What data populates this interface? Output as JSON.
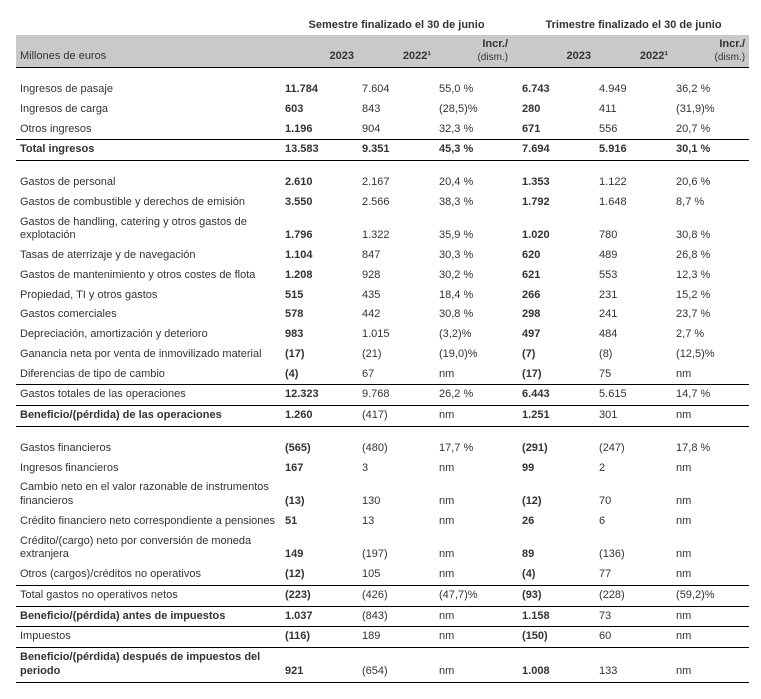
{
  "headers": {
    "group_sem": "Semestre finalizado el 30 de junio",
    "group_tri": "Trimestre finalizado el 30 de junio",
    "unit": "Millones de euros",
    "y2023": "2023",
    "y2022": "2022¹",
    "incr_top": "Incr./",
    "incr_bot": "(dism.)"
  },
  "rows": {
    "r0": {
      "l": "Ingresos de pasaje",
      "a": "11.784",
      "b": "7.604",
      "c": "55,0 %",
      "d": "6.743",
      "e": "4.949",
      "f": "36,2 %"
    },
    "r1": {
      "l": "Ingresos de carga",
      "a": "603",
      "b": "843",
      "c": "(28,5)%",
      "d": "280",
      "e": "411",
      "f": "(31,9)%"
    },
    "r2": {
      "l": "Otros ingresos",
      "a": "1.196",
      "b": "904",
      "c": "32,3 %",
      "d": "671",
      "e": "556",
      "f": "20,7 %"
    },
    "r3": {
      "l": "Total ingresos",
      "a": "13.583",
      "b": "9.351",
      "c": "45,3 %",
      "d": "7.694",
      "e": "5.916",
      "f": "30,1 %"
    },
    "r4": {
      "l": "Gastos de personal",
      "a": "2.610",
      "b": "2.167",
      "c": "20,4 %",
      "d": "1.353",
      "e": "1.122",
      "f": "20,6 %"
    },
    "r5": {
      "l": "Gastos de combustible y derechos de emisión",
      "a": "3.550",
      "b": "2.566",
      "c": "38,3 %",
      "d": "1.792",
      "e": "1.648",
      "f": "8,7 %"
    },
    "r6": {
      "l": "Gastos de handling, catering y otros gastos de explotación",
      "a": "1.796",
      "b": "1.322",
      "c": "35,9 %",
      "d": "1.020",
      "e": "780",
      "f": "30,8 %"
    },
    "r7": {
      "l": "Tasas de aterrizaje y de navegación",
      "a": "1.104",
      "b": "847",
      "c": "30,3 %",
      "d": "620",
      "e": "489",
      "f": "26,8 %"
    },
    "r8": {
      "l": "Gastos de mantenimiento y otros costes de flota",
      "a": "1.208",
      "b": "928",
      "c": "30,2 %",
      "d": "621",
      "e": "553",
      "f": "12,3 %"
    },
    "r9": {
      "l": "Propiedad, TI y otros gastos",
      "a": "515",
      "b": "435",
      "c": "18,4 %",
      "d": "266",
      "e": "231",
      "f": "15,2 %"
    },
    "r10": {
      "l": "Gastos comerciales",
      "a": "578",
      "b": "442",
      "c": "30,8 %",
      "d": "298",
      "e": "241",
      "f": "23,7 %"
    },
    "r11": {
      "l": "Depreciación, amortización y deterioro",
      "a": "983",
      "b": "1.015",
      "c": "(3,2)%",
      "d": "497",
      "e": "484",
      "f": "2,7 %"
    },
    "r12": {
      "l": "Ganancia neta por venta de inmovilizado material",
      "a": "(17)",
      "b": "(21)",
      "c": "(19,0)%",
      "d": "(7)",
      "e": "(8)",
      "f": "(12,5)%"
    },
    "r13": {
      "l": "Diferencias de tipo de cambio",
      "a": "(4)",
      "b": "67",
      "c": "nm",
      "d": "(17)",
      "e": "75",
      "f": "nm"
    },
    "r14": {
      "l": "Gastos totales de las operaciones",
      "a": "12.323",
      "b": "9.768",
      "c": "26,2 %",
      "d": "6.443",
      "e": "5.615",
      "f": "14,7 %"
    },
    "r15": {
      "l": "Beneficio/(pérdida) de las operaciones",
      "a": "1.260",
      "b": "(417)",
      "c": "nm",
      "d": "1.251",
      "e": "301",
      "f": "nm"
    },
    "r16": {
      "l": "Gastos financieros",
      "a": "(565)",
      "b": "(480)",
      "c": "17,7 %",
      "d": "(291)",
      "e": "(247)",
      "f": "17,8 %"
    },
    "r17": {
      "l": "Ingresos financieros",
      "a": "167",
      "b": "3",
      "c": "nm",
      "d": "99",
      "e": "2",
      "f": "nm"
    },
    "r18": {
      "l": "Cambio neto en el valor razonable de instrumentos financieros",
      "a": "(13)",
      "b": "130",
      "c": "nm",
      "d": "(12)",
      "e": "70",
      "f": "nm"
    },
    "r19": {
      "l": "Crédito financiero neto correspondiente a pensiones",
      "a": "51",
      "b": "13",
      "c": "nm",
      "d": "26",
      "e": "6",
      "f": "nm"
    },
    "r20": {
      "l": "Crédito/(cargo) neto por conversión de moneda extranjera",
      "a": "149",
      "b": "(197)",
      "c": "nm",
      "d": "89",
      "e": "(136)",
      "f": "nm"
    },
    "r21": {
      "l": "Otros (cargos)/créditos no operativos",
      "a": "(12)",
      "b": "105",
      "c": "nm",
      "d": "(4)",
      "e": "77",
      "f": "nm"
    },
    "r22": {
      "l": "Total gastos no operativos netos",
      "a": "(223)",
      "b": "(426)",
      "c": "(47,7)%",
      "d": "(93)",
      "e": "(228)",
      "f": "(59,2)%"
    },
    "r23": {
      "l": "Beneficio/(pérdida) antes de impuestos",
      "a": "1.037",
      "b": "(843)",
      "c": "nm",
      "d": "1.158",
      "e": "73",
      "f": "nm"
    },
    "r24": {
      "l": "Impuestos",
      "a": "(116)",
      "b": "189",
      "c": "nm",
      "d": "(150)",
      "e": "60",
      "f": "nm"
    },
    "r25": {
      "l": "Beneficio/(pérdida) después de impuestos del periodo",
      "a": "921",
      "b": "(654)",
      "c": "nm",
      "d": "1.008",
      "e": "133",
      "f": "nm"
    }
  }
}
